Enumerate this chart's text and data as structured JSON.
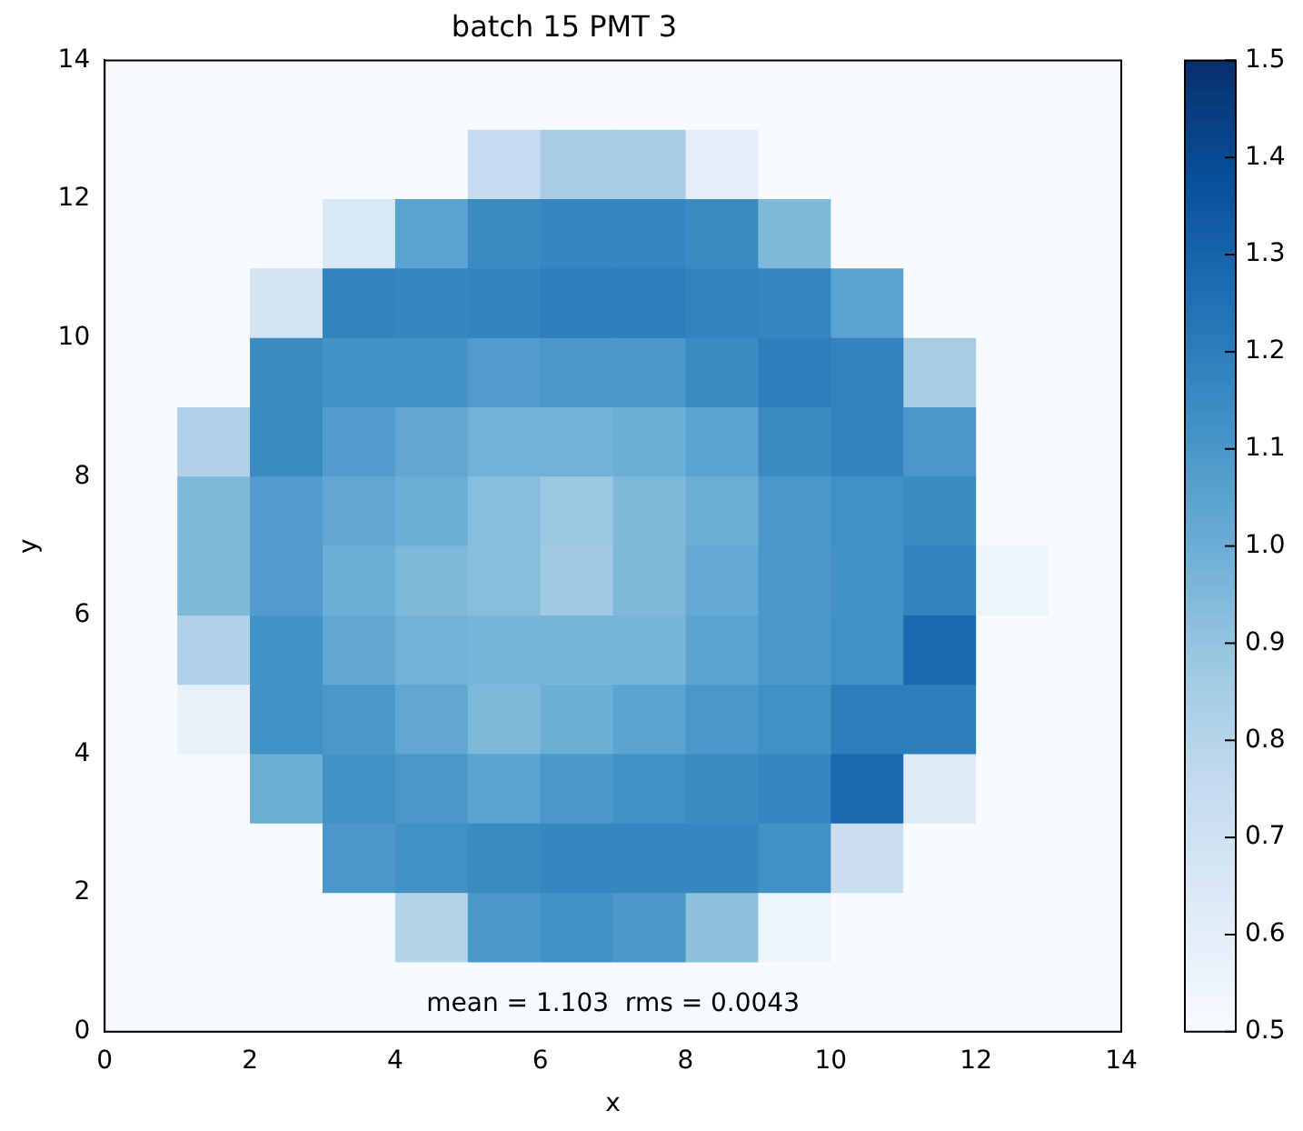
{
  "chart_data": {
    "type": "heatmap",
    "title": "batch 15 PMT 3",
    "xlabel": "x",
    "ylabel": "y",
    "x": [
      0.5,
      1.5,
      2.5,
      3.5,
      4.5,
      5.5,
      6.5,
      7.5,
      8.5,
      9.5,
      10.5,
      11.5,
      12.5,
      13.5
    ],
    "y": [
      13.5,
      12.5,
      11.5,
      10.5,
      9.5,
      8.5,
      7.5,
      6.5,
      5.5,
      4.5,
      3.5,
      2.5,
      1.5,
      0.5
    ],
    "cells": [
      [
        0.5,
        0.5,
        0.5,
        0.5,
        0.5,
        0.5,
        0.5,
        0.5,
        0.5,
        0.5,
        0.5,
        0.5,
        0.5,
        0.5
      ],
      [
        0.5,
        0.5,
        0.5,
        0.5,
        0.5,
        0.75,
        0.85,
        0.85,
        0.6,
        0.5,
        0.5,
        0.5,
        0.5,
        0.5
      ],
      [
        0.5,
        0.5,
        0.5,
        0.65,
        1.05,
        1.15,
        1.17,
        1.17,
        1.15,
        0.95,
        0.5,
        0.5,
        0.5,
        0.5
      ],
      [
        0.5,
        0.5,
        0.68,
        1.18,
        1.17,
        1.18,
        1.2,
        1.2,
        1.18,
        1.17,
        1.05,
        0.5,
        0.5,
        0.5
      ],
      [
        0.5,
        0.5,
        1.15,
        1.12,
        1.12,
        1.08,
        1.1,
        1.1,
        1.15,
        1.2,
        1.18,
        0.85,
        0.5,
        0.5
      ],
      [
        0.5,
        0.82,
        1.15,
        1.08,
        1.03,
        0.98,
        0.98,
        1.0,
        1.05,
        1.15,
        1.18,
        1.1,
        0.5,
        0.5
      ],
      [
        0.5,
        0.95,
        1.08,
        1.03,
        1.0,
        0.93,
        0.88,
        0.95,
        1.0,
        1.1,
        1.13,
        1.15,
        0.5,
        0.5
      ],
      [
        0.5,
        0.95,
        1.08,
        1.0,
        0.95,
        0.93,
        0.87,
        0.95,
        1.02,
        1.1,
        1.12,
        1.18,
        0.55,
        0.5
      ],
      [
        0.5,
        0.82,
        1.12,
        1.03,
        0.98,
        0.97,
        0.97,
        0.97,
        1.05,
        1.1,
        1.13,
        1.28,
        0.5,
        0.5
      ],
      [
        0.5,
        0.58,
        1.13,
        1.1,
        1.03,
        0.95,
        1.0,
        1.05,
        1.1,
        1.13,
        1.2,
        1.2,
        0.5,
        0.5
      ],
      [
        0.5,
        0.5,
        1.0,
        1.13,
        1.1,
        1.05,
        1.1,
        1.13,
        1.15,
        1.17,
        1.28,
        0.62,
        0.5,
        0.5
      ],
      [
        0.5,
        0.5,
        0.5,
        1.1,
        1.13,
        1.15,
        1.17,
        1.17,
        1.17,
        1.13,
        0.72,
        0.5,
        0.5,
        0.5
      ],
      [
        0.5,
        0.5,
        0.5,
        0.5,
        0.8,
        1.1,
        1.13,
        1.1,
        0.92,
        0.55,
        0.5,
        0.5,
        0.5,
        0.5
      ],
      [
        0.5,
        0.5,
        0.5,
        0.5,
        0.5,
        0.5,
        0.5,
        0.5,
        0.5,
        0.5,
        0.5,
        0.5,
        0.5,
        0.5
      ]
    ],
    "colors": [
      "#f7fbff",
      "#deebf7",
      "#c6dbef",
      "#9ecae1",
      "#6baed6",
      "#4292c6",
      "#2171b5",
      "#08519c",
      "#08306b"
    ],
    "clim": [
      0.5,
      1.5
    ],
    "cticks": [
      0.5,
      0.6,
      0.7,
      0.8,
      0.9,
      {
        "value": 1.0,
        "label": "1.0"
      },
      1.1,
      1.2,
      1.3,
      1.4,
      1.5
    ],
    "xlim": [
      0,
      14
    ],
    "ylim": [
      0,
      14
    ],
    "xticks": [
      0,
      2,
      4,
      6,
      8,
      10,
      12,
      14
    ],
    "yticks": [
      0,
      2,
      4,
      6,
      8,
      10,
      12,
      14
    ],
    "annotations": [
      "mean = 1.103  rms = 0.0043"
    ]
  }
}
